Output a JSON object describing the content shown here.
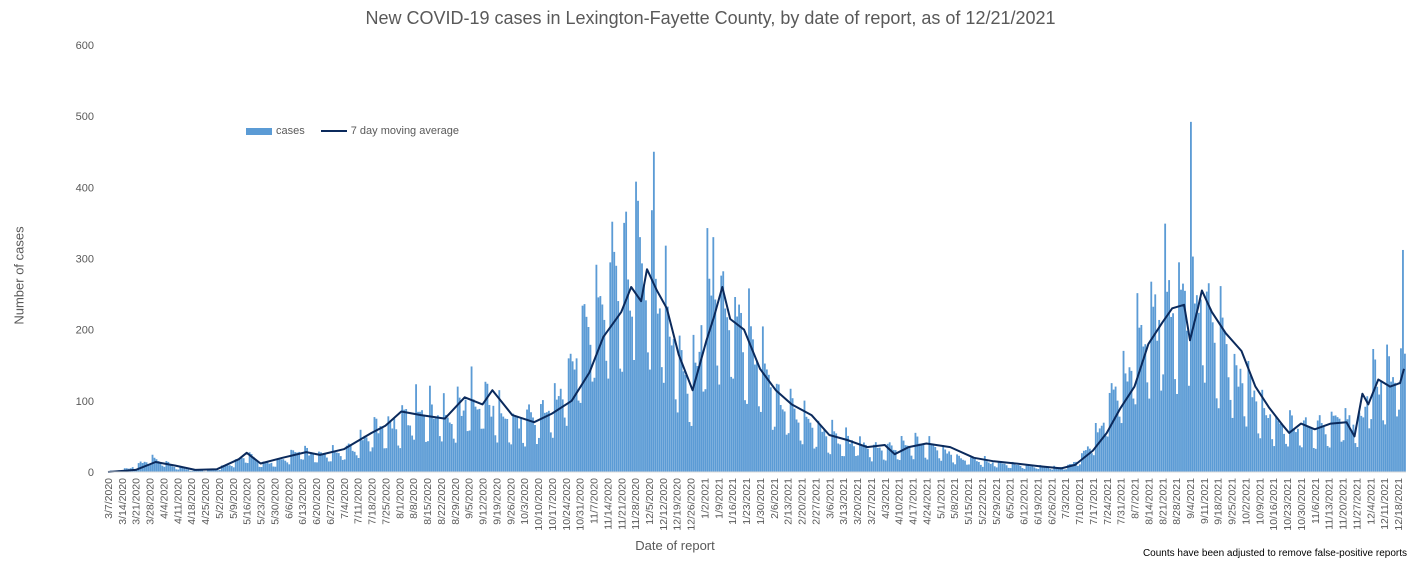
{
  "chart_data": {
    "type": "bar",
    "title": "New COVID-19 cases in Lexington-Fayette County, by date of report, as of 12/21/2021",
    "xlabel": "Date of report",
    "ylabel": "Number of cases",
    "ylim": [
      0,
      600
    ],
    "yticks": [
      0,
      100,
      200,
      300,
      400,
      500,
      600
    ],
    "x_start": "2020-03-07",
    "x_end": "2021-12-21",
    "xtick_labels": [
      "3/7/2020",
      "3/14/2020",
      "3/21/2020",
      "3/28/2020",
      "4/4/2020",
      "4/11/2020",
      "4/18/2020",
      "4/25/2020",
      "5/2/2020",
      "5/9/2020",
      "5/16/2020",
      "5/23/2020",
      "5/30/2020",
      "6/6/2020",
      "6/13/2020",
      "6/20/2020",
      "6/27/2020",
      "7/4/2020",
      "7/11/2020",
      "7/18/2020",
      "7/25/2020",
      "8/1/2020",
      "8/8/2020",
      "8/15/2020",
      "8/22/2020",
      "8/29/2020",
      "9/5/2020",
      "9/12/2020",
      "9/19/2020",
      "9/26/2020",
      "10/3/2020",
      "10/10/2020",
      "10/17/2020",
      "10/24/2020",
      "10/31/2020",
      "11/7/2020",
      "11/14/2020",
      "11/21/2020",
      "11/28/2020",
      "12/5/2020",
      "12/12/2020",
      "12/19/2020",
      "12/26/2020",
      "1/2/2021",
      "1/9/2021",
      "1/16/2021",
      "1/23/2021",
      "1/30/2021",
      "2/6/2021",
      "2/13/2021",
      "2/20/2021",
      "2/27/2021",
      "3/6/2021",
      "3/13/2021",
      "3/20/2021",
      "3/27/2021",
      "4/3/2021",
      "4/10/2021",
      "4/17/2021",
      "4/24/2021",
      "5/1/2021",
      "5/8/2021",
      "5/15/2021",
      "5/22/2021",
      "5/29/2021",
      "6/5/2021",
      "6/12/2021",
      "6/19/2021",
      "6/26/2021",
      "7/3/2021",
      "7/10/2021",
      "7/17/2021",
      "7/24/2021",
      "7/31/2021",
      "8/7/2021",
      "8/14/2021",
      "8/21/2021",
      "8/28/2021",
      "9/4/2021",
      "9/11/2021",
      "9/18/2021",
      "9/25/2021",
      "10/2/2021",
      "10/9/2021",
      "10/16/2021",
      "10/23/2021",
      "10/30/2021",
      "11/6/2021",
      "11/13/2021",
      "11/20/2021",
      "11/27/2021",
      "12/4/2021",
      "12/11/2021",
      "12/18/2021"
    ],
    "series": [
      {
        "name": "cases",
        "type": "bar",
        "color": "#5b9bd5",
        "weekly_avg": [
          1,
          3,
          8,
          18,
          12,
          6,
          3,
          2,
          5,
          14,
          22,
          12,
          12,
          22,
          28,
          22,
          24,
          28,
          38,
          55,
          62,
          70,
          82,
          80,
          78,
          78,
          100,
          100,
          80,
          68,
          70,
          78,
          88,
          120,
          170,
          230,
          250,
          270,
          260,
          280,
          220,
          160,
          120,
          225,
          240,
          210,
          190,
          140,
          110,
          90,
          75,
          60,
          50,
          42,
          38,
          30,
          32,
          33,
          38,
          36,
          30,
          22,
          18,
          15,
          12,
          10,
          8,
          8,
          6,
          7,
          18,
          42,
          85,
          120,
          160,
          200,
          220,
          230,
          215,
          225,
          190,
          140,
          120,
          90,
          70,
          58,
          62,
          58,
          62,
          72,
          60,
          120,
          125,
          140
        ],
        "peaks": [
          {
            "date": "2020-11-28",
            "value": 408
          },
          {
            "date": "2020-12-07",
            "value": 450
          },
          {
            "date": "2021-01-06",
            "value": 330
          },
          {
            "date": "2021-08-22",
            "value": 349
          },
          {
            "date": "2021-09-04",
            "value": 492
          },
          {
            "date": "2021-12-20",
            "value": 312
          }
        ]
      },
      {
        "name": "7 day moving average",
        "type": "line",
        "color": "#0b2a5c",
        "points": [
          {
            "date": "2020-03-07",
            "value": 0
          },
          {
            "date": "2020-03-21",
            "value": 3
          },
          {
            "date": "2020-03-31",
            "value": 14
          },
          {
            "date": "2020-04-10",
            "value": 9
          },
          {
            "date": "2020-04-20",
            "value": 3
          },
          {
            "date": "2020-05-01",
            "value": 4
          },
          {
            "date": "2020-05-12",
            "value": 18
          },
          {
            "date": "2020-05-16",
            "value": 27
          },
          {
            "date": "2020-05-23",
            "value": 12
          },
          {
            "date": "2020-06-03",
            "value": 20
          },
          {
            "date": "2020-06-15",
            "value": 28
          },
          {
            "date": "2020-06-22",
            "value": 24
          },
          {
            "date": "2020-07-04",
            "value": 32
          },
          {
            "date": "2020-07-18",
            "value": 55
          },
          {
            "date": "2020-07-25",
            "value": 65
          },
          {
            "date": "2020-08-02",
            "value": 85
          },
          {
            "date": "2020-08-12",
            "value": 80
          },
          {
            "date": "2020-08-24",
            "value": 75
          },
          {
            "date": "2020-09-03",
            "value": 105
          },
          {
            "date": "2020-09-12",
            "value": 95
          },
          {
            "date": "2020-09-17",
            "value": 115
          },
          {
            "date": "2020-09-27",
            "value": 80
          },
          {
            "date": "2020-10-08",
            "value": 70
          },
          {
            "date": "2020-10-17",
            "value": 82
          },
          {
            "date": "2020-10-27",
            "value": 100
          },
          {
            "date": "2020-11-05",
            "value": 140
          },
          {
            "date": "2020-11-12",
            "value": 190
          },
          {
            "date": "2020-11-21",
            "value": 225
          },
          {
            "date": "2020-11-26",
            "value": 260
          },
          {
            "date": "2020-12-01",
            "value": 240
          },
          {
            "date": "2020-12-04",
            "value": 285
          },
          {
            "date": "2020-12-09",
            "value": 255
          },
          {
            "date": "2020-12-14",
            "value": 230
          },
          {
            "date": "2020-12-20",
            "value": 165
          },
          {
            "date": "2020-12-27",
            "value": 115
          },
          {
            "date": "2021-01-03",
            "value": 185
          },
          {
            "date": "2021-01-07",
            "value": 220
          },
          {
            "date": "2021-01-11",
            "value": 260
          },
          {
            "date": "2021-01-15",
            "value": 215
          },
          {
            "date": "2021-01-22",
            "value": 200
          },
          {
            "date": "2021-01-30",
            "value": 145
          },
          {
            "date": "2021-02-07",
            "value": 115
          },
          {
            "date": "2021-02-15",
            "value": 95
          },
          {
            "date": "2021-02-25",
            "value": 80
          },
          {
            "date": "2021-03-06",
            "value": 52
          },
          {
            "date": "2021-03-15",
            "value": 45
          },
          {
            "date": "2021-03-25",
            "value": 35
          },
          {
            "date": "2021-04-03",
            "value": 38
          },
          {
            "date": "2021-04-08",
            "value": 25
          },
          {
            "date": "2021-04-15",
            "value": 35
          },
          {
            "date": "2021-04-24",
            "value": 40
          },
          {
            "date": "2021-05-06",
            "value": 35
          },
          {
            "date": "2021-05-18",
            "value": 20
          },
          {
            "date": "2021-05-28",
            "value": 15
          },
          {
            "date": "2021-06-08",
            "value": 12
          },
          {
            "date": "2021-06-20",
            "value": 8
          },
          {
            "date": "2021-07-01",
            "value": 5
          },
          {
            "date": "2021-07-08",
            "value": 10
          },
          {
            "date": "2021-07-17",
            "value": 30
          },
          {
            "date": "2021-07-24",
            "value": 55
          },
          {
            "date": "2021-07-31",
            "value": 90
          },
          {
            "date": "2021-08-07",
            "value": 120
          },
          {
            "date": "2021-08-14",
            "value": 180
          },
          {
            "date": "2021-08-21",
            "value": 210
          },
          {
            "date": "2021-08-26",
            "value": 230
          },
          {
            "date": "2021-09-01",
            "value": 235
          },
          {
            "date": "2021-09-04",
            "value": 185
          },
          {
            "date": "2021-09-08",
            "value": 230
          },
          {
            "date": "2021-09-10",
            "value": 255
          },
          {
            "date": "2021-09-15",
            "value": 225
          },
          {
            "date": "2021-09-22",
            "value": 195
          },
          {
            "date": "2021-09-30",
            "value": 170
          },
          {
            "date": "2021-10-07",
            "value": 120
          },
          {
            "date": "2021-10-14",
            "value": 90
          },
          {
            "date": "2021-10-21",
            "value": 65
          },
          {
            "date": "2021-10-24",
            "value": 55
          },
          {
            "date": "2021-10-30",
            "value": 68
          },
          {
            "date": "2021-11-06",
            "value": 60
          },
          {
            "date": "2021-11-14",
            "value": 68
          },
          {
            "date": "2021-11-22",
            "value": 70
          },
          {
            "date": "2021-11-26",
            "value": 50
          },
          {
            "date": "2021-11-30",
            "value": 110
          },
          {
            "date": "2021-12-03",
            "value": 95
          },
          {
            "date": "2021-12-08",
            "value": 130
          },
          {
            "date": "2021-12-14",
            "value": 120
          },
          {
            "date": "2021-12-19",
            "value": 125
          },
          {
            "date": "2021-12-21",
            "value": 145
          }
        ]
      }
    ],
    "legend": "top-left",
    "grid": false
  },
  "footnote": "Counts have been adjusted to remove false-positive reports",
  "legend_labels": {
    "cases": "cases",
    "avg": "7 day moving average"
  }
}
